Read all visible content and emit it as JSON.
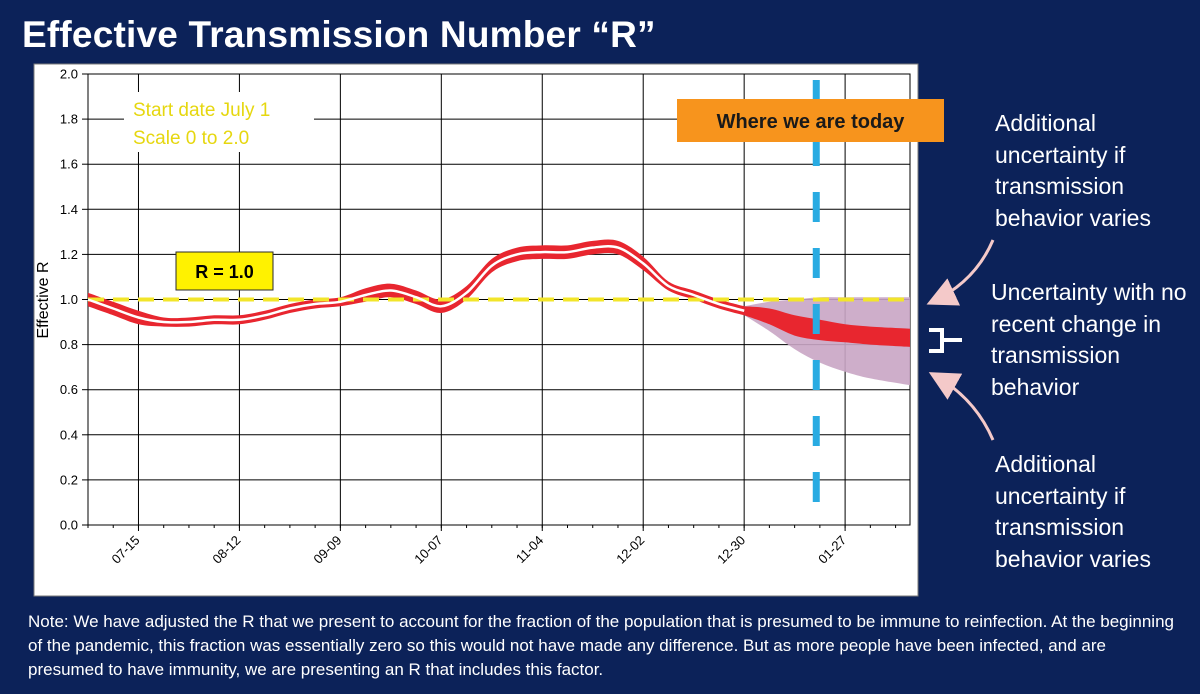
{
  "title": "Effective Transmission Number “R”",
  "chart_data": {
    "type": "line",
    "ylabel": "Effective R",
    "ylim": [
      0,
      2.0
    ],
    "yticks": [
      "0.0",
      "0.2",
      "0.4",
      "0.6",
      "0.8",
      "1.0",
      "1.2",
      "1.4",
      "1.6",
      "1.8",
      "2.0"
    ],
    "xlim": [
      "2020-07-01",
      "2021-02-14"
    ],
    "xticks": [
      {
        "date": "2020-07-15",
        "label": "07-15"
      },
      {
        "date": "2020-08-12",
        "label": "08-12"
      },
      {
        "date": "2020-09-09",
        "label": "09-09"
      },
      {
        "date": "2020-10-07",
        "label": "10-07"
      },
      {
        "date": "2020-11-04",
        "label": "11-04"
      },
      {
        "date": "2020-12-02",
        "label": "12-02"
      },
      {
        "date": "2020-12-30",
        "label": "12-30"
      },
      {
        "date": "2021-01-27",
        "label": "01-27"
      }
    ],
    "today": "2021-01-19",
    "reference_line": {
      "y": 1.0,
      "label": "R = 1.0",
      "color": "#f2e52a"
    },
    "annotation_start": [
      "Start date July 1",
      "Scale 0 to 2.0"
    ],
    "annotation_today": "Where we are today",
    "series": [
      {
        "type": "line_with_band",
        "color": "#ffffff",
        "band_color": "#e8262f",
        "points": [
          [
            "2020-07-01",
            1.0,
            0.03
          ],
          [
            "2020-07-08",
            0.96,
            0.03
          ],
          [
            "2020-07-15",
            0.92,
            0.03
          ],
          [
            "2020-07-22",
            0.9,
            0.02
          ],
          [
            "2020-07-29",
            0.9,
            0.02
          ],
          [
            "2020-08-05",
            0.91,
            0.02
          ],
          [
            "2020-08-12",
            0.91,
            0.02
          ],
          [
            "2020-08-19",
            0.93,
            0.02
          ],
          [
            "2020-08-26",
            0.96,
            0.02
          ],
          [
            "2020-09-02",
            0.98,
            0.02
          ],
          [
            "2020-09-09",
            0.99,
            0.02
          ],
          [
            "2020-09-16",
            1.02,
            0.03
          ],
          [
            "2020-09-23",
            1.04,
            0.03
          ],
          [
            "2020-09-30",
            1.01,
            0.03
          ],
          [
            "2020-10-07",
            0.97,
            0.03
          ],
          [
            "2020-10-14",
            1.03,
            0.03
          ],
          [
            "2020-10-21",
            1.15,
            0.03
          ],
          [
            "2020-10-28",
            1.2,
            0.03
          ],
          [
            "2020-11-04",
            1.21,
            0.03
          ],
          [
            "2020-11-11",
            1.21,
            0.03
          ],
          [
            "2020-11-18",
            1.23,
            0.03
          ],
          [
            "2020-11-25",
            1.23,
            0.03
          ],
          [
            "2020-12-02",
            1.16,
            0.03
          ],
          [
            "2020-12-09",
            1.06,
            0.02
          ],
          [
            "2020-12-16",
            1.02,
            0.02
          ],
          [
            "2020-12-23",
            0.98,
            0.02
          ],
          [
            "2020-12-30",
            0.95,
            0.02
          ]
        ]
      },
      {
        "type": "projection_band",
        "name": "no recent change",
        "color": "#e8262f",
        "points": [
          [
            "2020-12-30",
            0.97,
            0.93
          ],
          [
            "2021-01-06",
            0.96,
            0.89
          ],
          [
            "2021-01-13",
            0.93,
            0.84
          ],
          [
            "2021-01-20",
            0.91,
            0.82
          ],
          [
            "2021-01-27",
            0.89,
            0.81
          ],
          [
            "2021-02-03",
            0.88,
            0.8
          ],
          [
            "2021-02-14",
            0.87,
            0.79
          ]
        ]
      },
      {
        "type": "projection_band",
        "name": "behavior varies",
        "color": "#c9a5c4",
        "points": [
          [
            "2020-12-30",
            0.97,
            0.93
          ],
          [
            "2021-01-06",
            0.99,
            0.86
          ],
          [
            "2021-01-13",
            1.0,
            0.78
          ],
          [
            "2021-01-20",
            1.01,
            0.72
          ],
          [
            "2021-01-27",
            1.01,
            0.68
          ],
          [
            "2021-02-03",
            1.01,
            0.65
          ],
          [
            "2021-02-14",
            1.01,
            0.62
          ]
        ]
      }
    ]
  },
  "side_notes": {
    "top": "Additional uncertainty if transmission behavior varies",
    "middle": "Uncertainty with no recent change in transmission behavior",
    "bottom": "Additional uncertainty if transmission behavior varies"
  },
  "footnote": "Note: We have adjusted the R that we present to account for the fraction of the population that is presumed to be immune to reinfection.  At the beginning of the pandemic, this fraction was essentially zero so this would not have made any difference.  But as more people have been infected, and are presumed to have immunity, we are presenting an R that includes this factor.",
  "colors": {
    "background": "#0c2259",
    "plot_background": "#ffffff",
    "today_line": "#29abe2",
    "today_box": "#f7941d",
    "reference_box": "#fff200",
    "arrow": "#f4c9c9"
  }
}
